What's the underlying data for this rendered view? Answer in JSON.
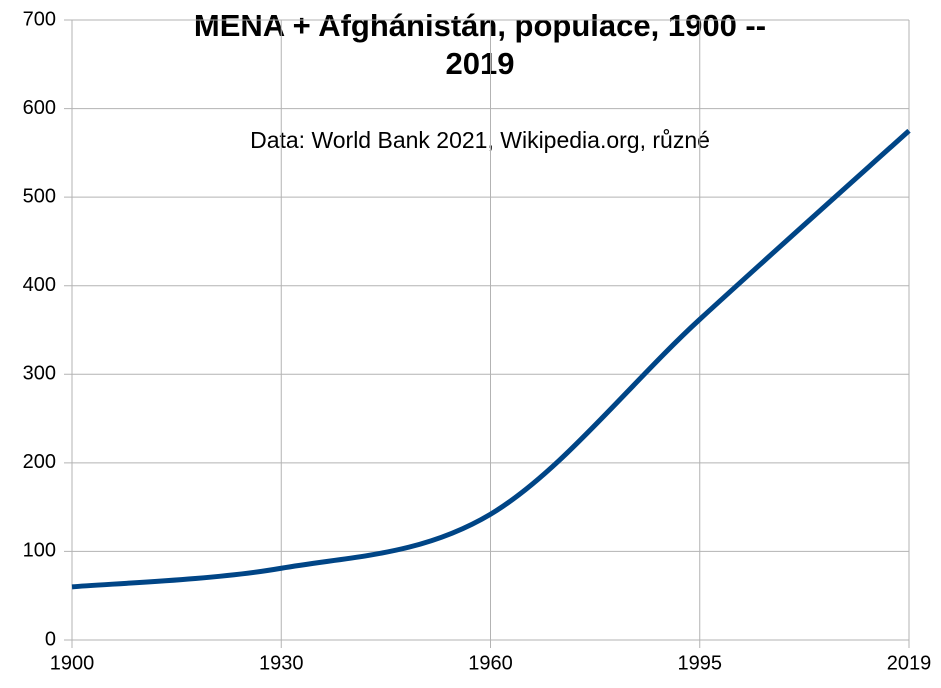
{
  "chart_data": {
    "type": "line",
    "title": [
      "MENA + Afghánistán, populace, 1900 --",
      "2019"
    ],
    "subtitle": "Data: World Bank 2021, Wikipedia.org, různé",
    "categories": [
      "1900",
      "1930",
      "1960",
      "1995",
      "2019"
    ],
    "series": [
      {
        "name": "MENA + Afghánistán",
        "color": "#004586",
        "values": [
          60,
          81,
          142,
          362,
          575
        ]
      }
    ],
    "ylim": [
      0,
      700
    ],
    "yticks": [
      0,
      100,
      200,
      300,
      400,
      500,
      600,
      700
    ],
    "grid": true
  }
}
